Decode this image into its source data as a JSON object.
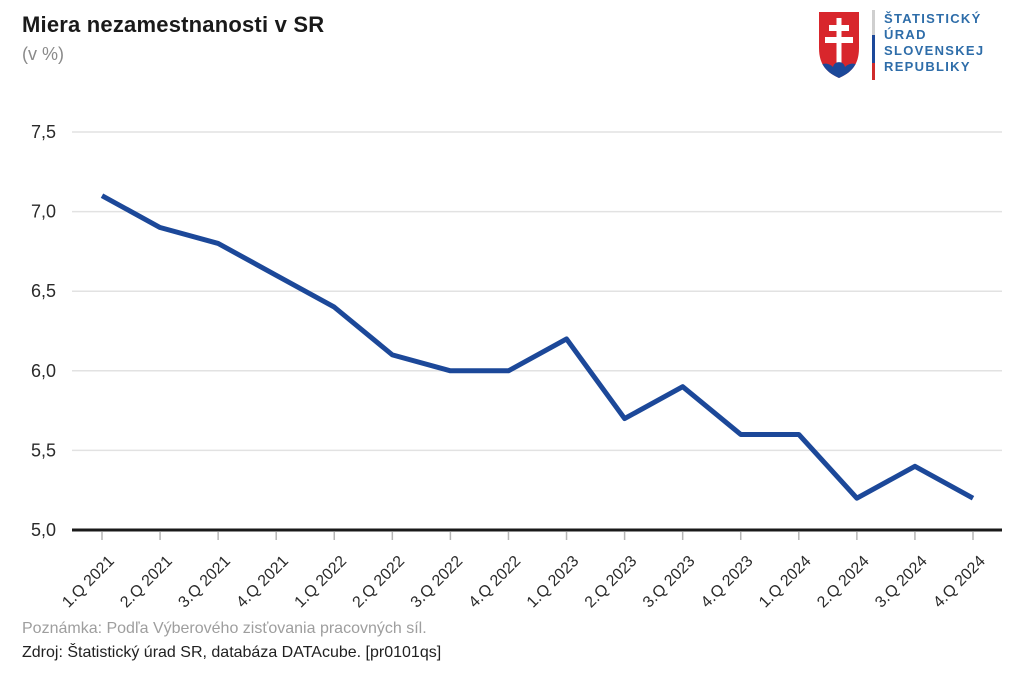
{
  "header": {
    "title": "Miera nezamestnanosti v SR",
    "subtitle": "(v %)"
  },
  "logo": {
    "icon": "slovak-coat-of-arms",
    "lines": [
      "ŠTATISTICKÝ",
      "ÚRAD",
      "SLOVENSKEJ",
      "REPUBLIKY"
    ]
  },
  "colors": {
    "line": "#1c4899",
    "grid": "#e2e2e2",
    "axis": "#1a1a1a",
    "tick": "#b5b5b5",
    "tick_label": "#2a2a2a",
    "logo_text": "#2e6da9",
    "shield_red": "#d8262c",
    "shield_blue": "#1c4899",
    "bar_white": "#cfcfcf",
    "bar_blue": "#1c4899",
    "bar_red": "#cf2b2b"
  },
  "chart_data": {
    "type": "line",
    "title": "Miera nezamestnanosti v SR",
    "subtitle": "(v %)",
    "xlabel": "",
    "ylabel": "",
    "categories": [
      "1.Q 2021",
      "2.Q 2021",
      "3.Q 2021",
      "4.Q 2021",
      "1.Q 2022",
      "2.Q 2022",
      "3.Q 2022",
      "4.Q 2022",
      "1.Q 2023",
      "2.Q 2023",
      "3.Q 2023",
      "4.Q 2023",
      "1.Q 2024",
      "2.Q 2024",
      "3.Q 2024",
      "4.Q 2024"
    ],
    "values": [
      7.1,
      6.9,
      6.8,
      6.6,
      6.4,
      6.1,
      6.0,
      6.0,
      6.2,
      5.7,
      5.9,
      5.6,
      5.6,
      5.2,
      5.4,
      5.2
    ],
    "ylim": [
      5.0,
      7.5
    ],
    "ytick_values": [
      7.5,
      7.0,
      6.5,
      6.0,
      5.5,
      5.0
    ],
    "ytick_labels": [
      "7,5",
      "7,0",
      "6,5",
      "6,0",
      "5,5",
      "5,0"
    ],
    "grid": true,
    "legend": false
  },
  "footer": {
    "note": "Poznámka: Podľa Výberového zisťovania pracovných síl.",
    "source": "Zdroj: Štatistický úrad SR, databáza DATAcube. [pr0101qs]"
  }
}
